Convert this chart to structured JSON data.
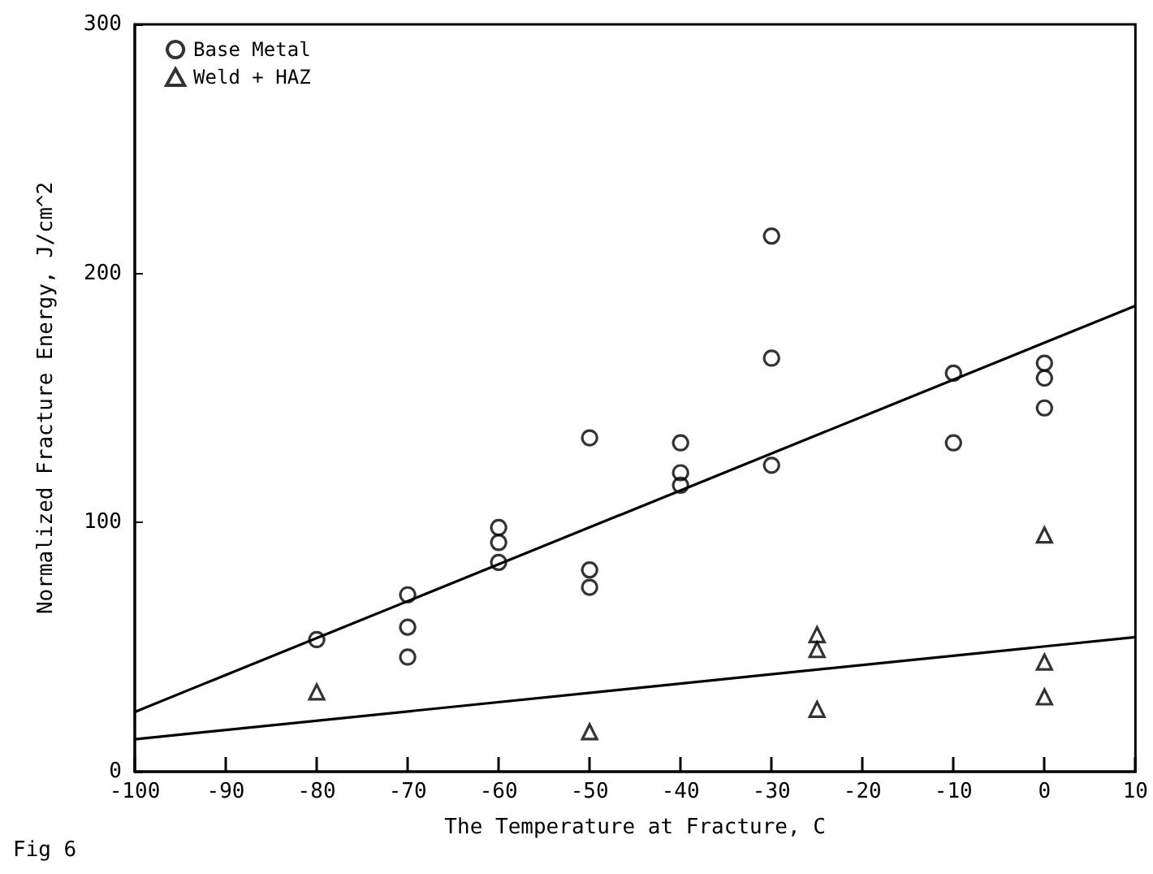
{
  "chart_data": {
    "type": "scatter",
    "xlabel": "The Temperature at Fracture, C",
    "ylabel": "Normalized Fracture Energy, J/cm^2",
    "annotations": [
      "Fig 6"
    ],
    "xlim": [
      -100,
      10
    ],
    "xticks": [
      -100,
      -90,
      -80,
      -70,
      -60,
      -50,
      -40,
      -30,
      -20,
      -10,
      0,
      10
    ],
    "ylim": [
      0,
      300
    ],
    "yticks": [
      0,
      100,
      200,
      300
    ],
    "grid": false,
    "legend": "top left",
    "series": [
      {
        "name": "Base Metal",
        "color": "#000000",
        "marker": "circle",
        "x": [
          -80,
          -70,
          -70,
          -70,
          -60,
          -60,
          -60,
          -50,
          -50,
          -50,
          -40,
          -40,
          -40,
          -30,
          -30,
          -30,
          -10,
          -10,
          0,
          0,
          0
        ],
        "values": [
          53,
          71,
          58,
          46,
          98,
          92,
          84,
          134,
          81,
          74,
          132,
          120,
          115,
          215,
          166,
          123,
          160,
          132,
          164,
          158,
          146
        ]
      },
      {
        "name": "Weld + HAZ",
        "color": "#000000",
        "marker": "triangle",
        "x": [
          -80,
          -50,
          -25,
          -25,
          -25,
          0,
          0,
          0
        ],
        "values": [
          32,
          16,
          55,
          49,
          25,
          95,
          44,
          30
        ]
      },
      {
        "type": "line",
        "color": "#000000",
        "marker": "none",
        "x": [
          -100,
          10
        ],
        "values": [
          24,
          187
        ]
      },
      {
        "type": "line",
        "color": "#000000",
        "marker": "none",
        "x": [
          -100,
          10
        ],
        "values": [
          13,
          54
        ]
      }
    ]
  }
}
